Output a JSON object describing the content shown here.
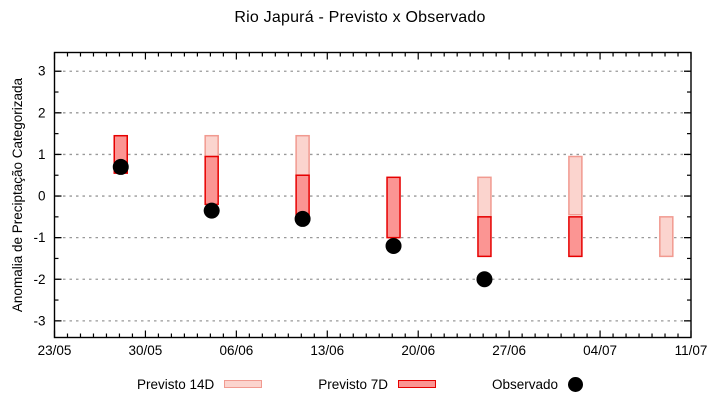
{
  "title": "Rio Japurá - Previsto x Observado",
  "chart_data": {
    "type": "bar",
    "subtype": "floating-range-bars-with-scatter",
    "title": "Rio Japurá - Previsto x Observado",
    "ylabel": "Anomalia de Preciptação Categorizada",
    "xlabel": "",
    "grid": "dotted-horizontal",
    "legend_position": "bottom-center",
    "x_axis": {
      "tick_labels": [
        "23/05",
        "30/05",
        "06/06",
        "13/06",
        "20/06",
        "27/06",
        "04/07",
        "11/07"
      ],
      "range_days": 49,
      "major_step_days": 7,
      "minor_step_days": 1
    },
    "y_axis": {
      "ticks": [
        3,
        2,
        1,
        0,
        -1,
        -2,
        -3
      ],
      "minor_ticks": [
        2.5,
        1.5,
        0.5,
        -0.5,
        -1.5,
        -2.5
      ],
      "lim": [
        -3.4,
        3.45
      ]
    },
    "bar_width_days": 1,
    "series": [
      {
        "name": "Previsto 14D",
        "type": "range-bar",
        "fill": "#fbd4ce",
        "border": "#f19a90",
        "bars": [
          {
            "day": 12.1,
            "week_of": "04/06",
            "low": 0.95,
            "high": 1.45
          },
          {
            "day": 19.1,
            "week_of": "11/06",
            "low": 0.5,
            "high": 1.45
          },
          {
            "day": 33.1,
            "week_of": "25/06",
            "low": -0.5,
            "high": 0.45
          },
          {
            "day": 40.1,
            "week_of": "02/07",
            "low": -0.45,
            "high": 0.95
          },
          {
            "day": 47.1,
            "week_of": "09/07",
            "low": -1.45,
            "high": -0.5
          }
        ]
      },
      {
        "name": "Previsto 7D",
        "type": "range-bar",
        "fill": "#fb9593",
        "border": "#e60000",
        "bars": [
          {
            "day": 5.1,
            "week_of": "28/05",
            "low": 0.55,
            "high": 1.45
          },
          {
            "day": 12.1,
            "week_of": "04/06",
            "low": -0.2,
            "high": 0.95
          },
          {
            "day": 19.1,
            "week_of": "11/06",
            "low": -0.45,
            "high": 0.5
          },
          {
            "day": 26.1,
            "week_of": "18/06",
            "low": -1.0,
            "high": 0.45
          },
          {
            "day": 33.1,
            "week_of": "25/06",
            "low": -1.45,
            "high": -0.5
          },
          {
            "day": 40.1,
            "week_of": "02/07",
            "low": -1.45,
            "high": -0.5
          }
        ]
      },
      {
        "name": "Observado",
        "type": "scatter",
        "color": "#000000",
        "points": [
          {
            "day": 5.1,
            "week_of": "28/05",
            "value": 0.7
          },
          {
            "day": 12.1,
            "week_of": "04/06",
            "value": -0.35
          },
          {
            "day": 19.1,
            "week_of": "11/06",
            "value": -0.55
          },
          {
            "day": 26.1,
            "week_of": "18/06",
            "value": -1.2
          },
          {
            "day": 33.1,
            "week_of": "25/06",
            "value": -2.0
          }
        ]
      }
    ]
  }
}
